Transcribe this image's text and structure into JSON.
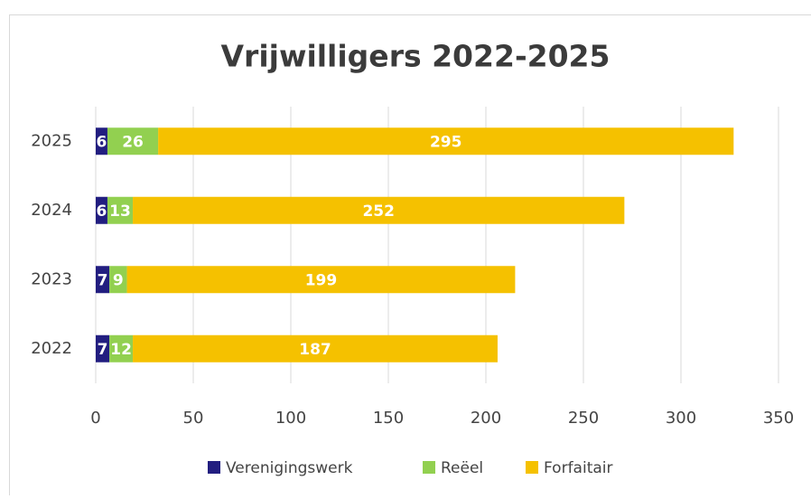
{
  "chart_data": {
    "type": "stacked-bar-horizontal",
    "title": "Vrijwilligers 2022-2025",
    "categories": [
      "2022",
      "2023",
      "2024",
      "2025"
    ],
    "series": [
      {
        "name": "Verenigingswerk",
        "color": "#221e80",
        "values": [
          7,
          7,
          6,
          6
        ]
      },
      {
        "name": "Reëel",
        "color": "#92d050",
        "values": [
          12,
          9,
          13,
          26
        ]
      },
      {
        "name": "Forfaitair",
        "color": "#f5c100",
        "values": [
          187,
          199,
          252,
          295
        ]
      }
    ],
    "xlim": [
      0,
      350
    ],
    "xticks": [
      0,
      50,
      100,
      150,
      200,
      250,
      300,
      350
    ],
    "grid": true,
    "legend": "bottom"
  }
}
